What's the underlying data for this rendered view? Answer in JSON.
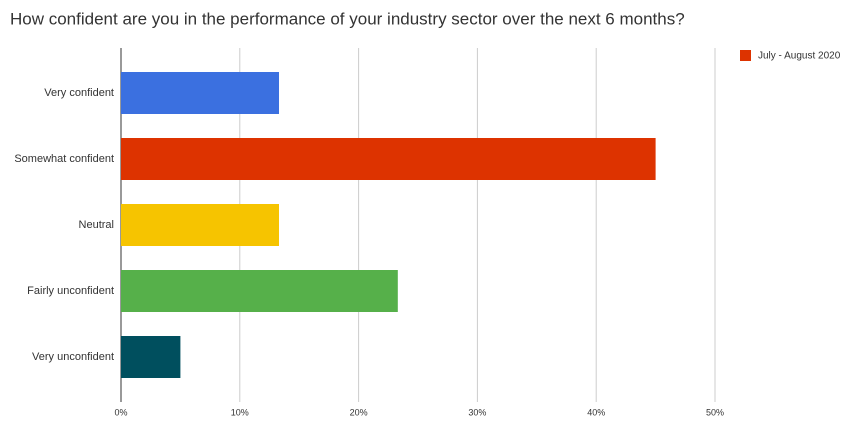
{
  "chart_data": {
    "type": "bar",
    "orientation": "horizontal",
    "title": "How confident are you in the performance of your industry sector over the next 6 months?",
    "categories": [
      "Very confident",
      "Somewhat confident",
      "Neutral",
      "Fairly unconfident",
      "Very unconfident"
    ],
    "series": [
      {
        "name": "July - August 2020",
        "color": "#dd3300",
        "values": [
          13.3,
          45,
          13.3,
          23.3,
          5
        ]
      }
    ],
    "bar_colors": [
      "#3b70e0",
      "#dd3300",
      "#f6c400",
      "#56b04a",
      "#004f5e"
    ],
    "xlim": [
      0,
      50
    ],
    "xticks": [
      {
        "value": 0,
        "label": "0%"
      },
      {
        "value": 10,
        "label": "10%"
      },
      {
        "value": 20,
        "label": "20%"
      },
      {
        "value": 30,
        "label": "30%"
      },
      {
        "value": 40,
        "label": "40%"
      },
      {
        "value": 50,
        "label": "50%"
      }
    ],
    "grid": true,
    "legend": "top-right"
  }
}
